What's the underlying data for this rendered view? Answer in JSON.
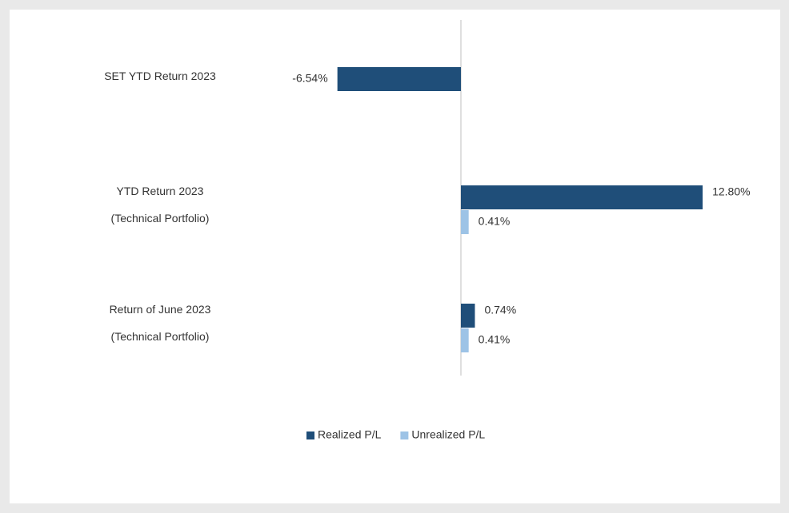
{
  "chart_data": {
    "type": "hbar",
    "categories": [
      "SET YTD Return 2023",
      "YTD Return 2023\n(Technical Portfolio)",
      "Return of June 2023\n(Technical Portfolio)"
    ],
    "series": [
      {
        "name": "Realized P/L",
        "color": "#1f4e79",
        "values": [
          -6.54,
          12.8,
          0.74
        ],
        "value_labels": [
          "-6.54%",
          "12.80%",
          "0.74%"
        ]
      },
      {
        "name": "Unrealized P/L",
        "color": "#9dc3e6",
        "values": [
          null,
          0.41,
          0.41
        ],
        "value_labels": [
          null,
          "0.41%",
          "0.41%"
        ]
      }
    ],
    "xlim": [
      -10,
      15
    ],
    "legend": "bottom"
  }
}
